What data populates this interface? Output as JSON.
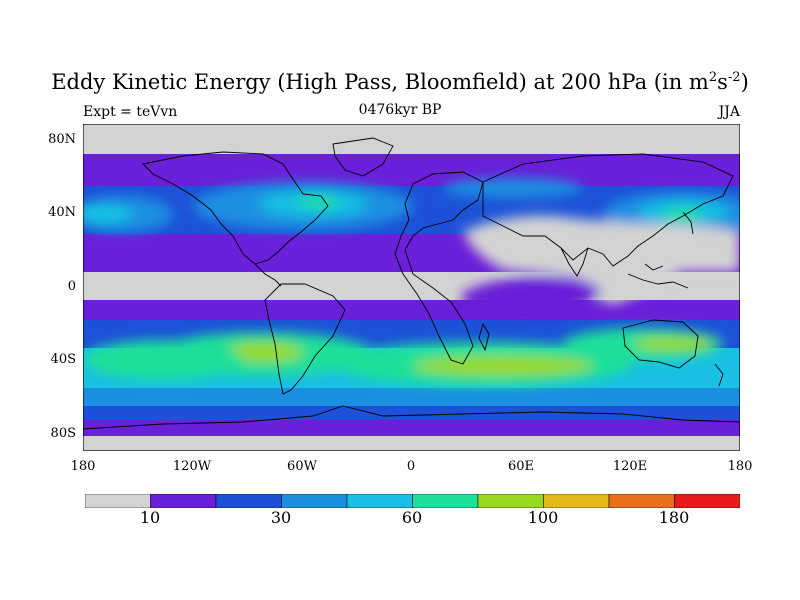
{
  "title": {
    "main": "Eddy Kinetic Energy (High Pass, Bloomfield) at 200 hPa (in m",
    "sup1": "2",
    "mid": "s",
    "sup2": "-2",
    "end": ")"
  },
  "subtitle": "0476kyr BP",
  "left_label": "Expt = teVvn",
  "right_label": "JJA",
  "axes": {
    "y_ticks": [
      "80N",
      "40N",
      "0",
      "40S",
      "80S"
    ],
    "x_ticks": [
      "180",
      "120W",
      "60W",
      "0",
      "60E",
      "120E",
      "180"
    ]
  },
  "colorbar": {
    "colors": [
      "#d3d3d3",
      "#6a1fd8",
      "#1d52d8",
      "#1a8fe0",
      "#19c0e3",
      "#1de09a",
      "#9ad81f",
      "#e5b81a",
      "#e8701c",
      "#e81c1c"
    ],
    "labels": [
      "10",
      "30",
      "60",
      "100",
      "180"
    ]
  },
  "chart_data": {
    "type": "heatmap",
    "title": "Eddy Kinetic Energy (High Pass, Bloomfield) at 200 hPa (in m2s-2)",
    "subtitle": "0476kyr BP",
    "left_label": "Expt = teVvn",
    "right_label": "JJA",
    "xlim": [
      -180,
      180
    ],
    "ylim": [
      -90,
      90
    ],
    "x_ticks": [
      "180",
      "120W",
      "60W",
      "0",
      "60E",
      "120E",
      "180"
    ],
    "y_ticks": [
      "80N",
      "40N",
      "0",
      "40S",
      "80S"
    ],
    "colorbar_labels": [
      "10",
      "30",
      "60",
      "100",
      "180"
    ]
  }
}
